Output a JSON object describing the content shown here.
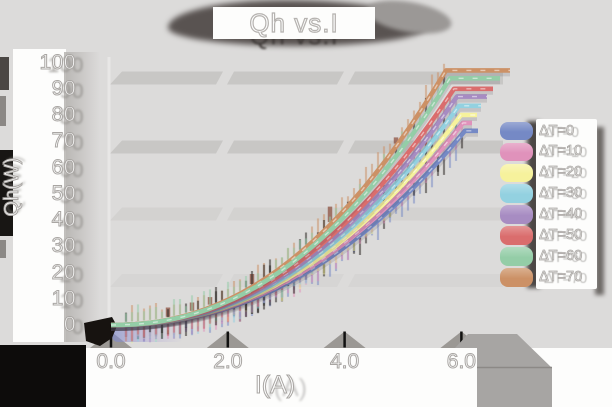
{
  "title": {
    "text": "Qh vs.I"
  },
  "axes": {
    "x": {
      "label": "I(A)",
      "tick_labels": [
        "0.0",
        "2.0",
        "4.0",
        "6.0"
      ],
      "tick_values": [
        0,
        2,
        4,
        6
      ],
      "range": [
        0,
        6.8
      ]
    },
    "y": {
      "label": "Qh(W)",
      "tick_labels": [
        "100",
        "90",
        "80",
        "70",
        "60",
        "50",
        "40",
        "30",
        "20",
        "10",
        "0"
      ],
      "tick_values": [
        100,
        90,
        80,
        70,
        60,
        50,
        40,
        30,
        20,
        10,
        0
      ],
      "range": [
        0,
        100
      ]
    }
  },
  "legend": {
    "position": "right",
    "entries": [
      {
        "label": "ΔT=0",
        "color": "#7589c5"
      },
      {
        "label": "ΔT=10",
        "color": "#e092bb"
      },
      {
        "label": "ΔT=20",
        "color": "#f6f29c"
      },
      {
        "label": "ΔT=30",
        "color": "#93d1e0"
      },
      {
        "label": "ΔT=40",
        "color": "#a78cc2"
      },
      {
        "label": "ΔT=50",
        "color": "#da6d6d"
      },
      {
        "label": "ΔT=60",
        "color": "#94cda7"
      },
      {
        "label": "ΔT=70",
        "color": "#cc9166"
      }
    ]
  },
  "chart_data": {
    "type": "line",
    "title": "Qh vs.I",
    "xlabel": "I(A)",
    "ylabel": "Qh(W)",
    "xlim": [
      0,
      6.8
    ],
    "ylim": [
      0,
      100
    ],
    "grid": "horizontal-bands",
    "legend_position": "right",
    "x": [
      0,
      1,
      2,
      3,
      4,
      5,
      6
    ],
    "series": [
      {
        "name": "ΔT=0",
        "color": "#7589c5",
        "values": [
          0,
          1,
          6,
          15,
          28,
          46,
          69
        ],
        "q_max": 74
      },
      {
        "name": "ΔT=10",
        "color": "#e092bb",
        "values": [
          0,
          1,
          6,
          16,
          29,
          48,
          72
        ],
        "q_max": 77
      },
      {
        "name": "ΔT=20",
        "color": "#f6f29c",
        "values": [
          0,
          1,
          7,
          16,
          31,
          50,
          74
        ],
        "q_max": 80
      },
      {
        "name": "ΔT=30",
        "color": "#93d1e0",
        "values": [
          0,
          2,
          7,
          17,
          32,
          52,
          78
        ],
        "q_max": 83.5
      },
      {
        "name": "ΔT=40",
        "color": "#a78cc2",
        "values": [
          0,
          2,
          7,
          18,
          33,
          54,
          81
        ],
        "q_max": 87
      },
      {
        "name": "ΔT=50",
        "color": "#da6d6d",
        "values": [
          0,
          2,
          7,
          18,
          34,
          56,
          84
        ],
        "q_max": 90
      },
      {
        "name": "ΔT=60",
        "color": "#94cda7",
        "values": [
          0,
          2,
          8,
          19,
          36,
          59,
          87
        ],
        "q_max": 94
      },
      {
        "name": "ΔT=70",
        "color": "#cc9166",
        "values": [
          0,
          2,
          8,
          20,
          37,
          60,
          90
        ],
        "q_max": 97
      }
    ]
  },
  "colors": {
    "background": "#dcdbda",
    "band": "#c8c7c5",
    "band_faint": "#d3d2d0",
    "panel": "#fdfdfc",
    "shadow_dark": "#595351",
    "text_outline": "#a9a6a3"
  }
}
